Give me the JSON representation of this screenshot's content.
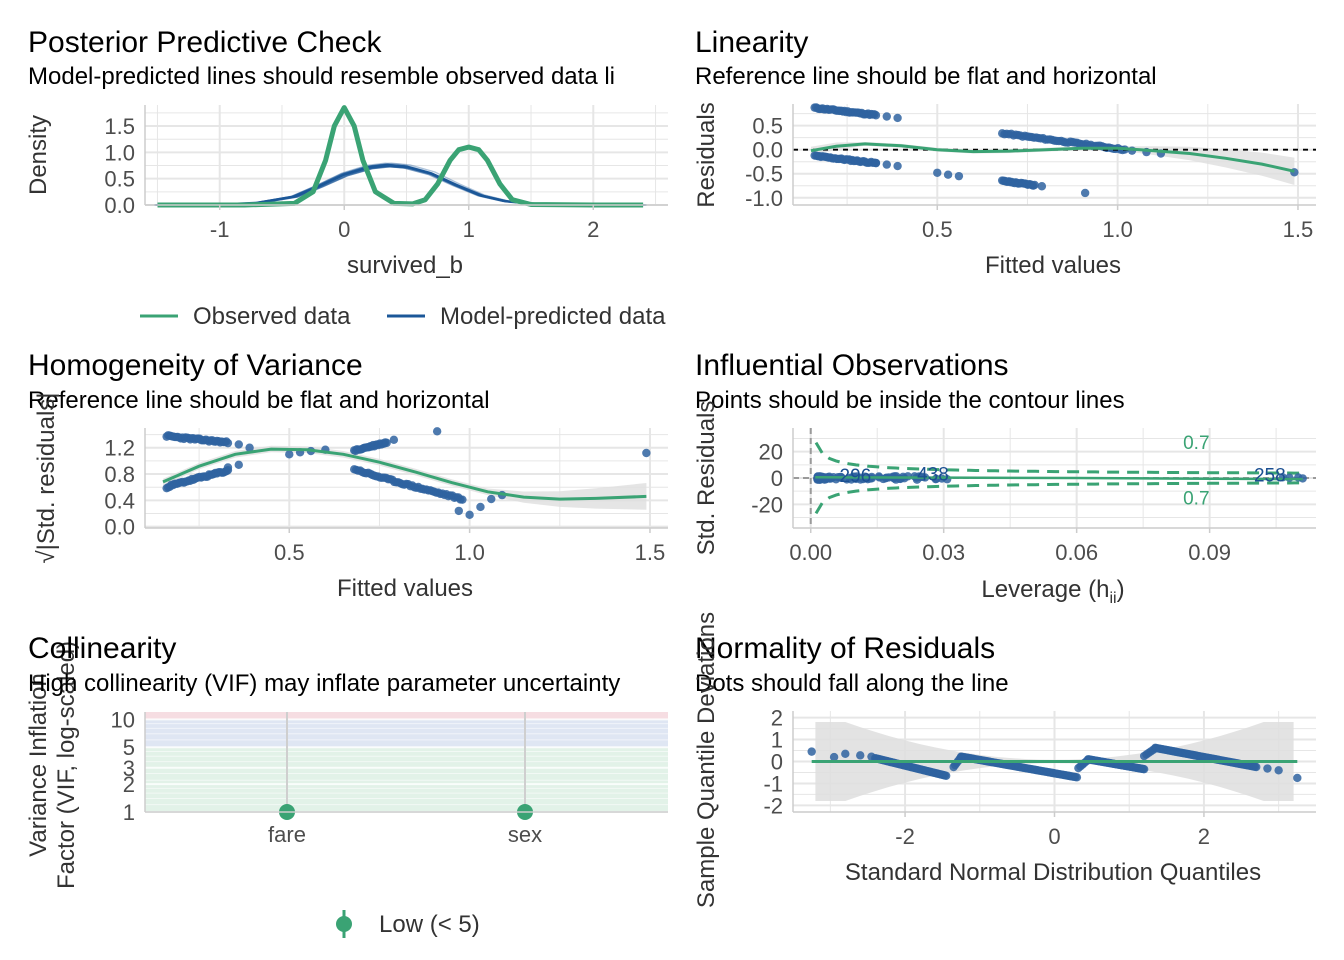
{
  "colors": {
    "observed": "#3aa374",
    "predicted": "#1b5798",
    "points": "#2f63a0",
    "smooth": "#3aa374",
    "ribbon": "#dedede",
    "grid": "#e6e6e6",
    "low_band": "#e2f2e8",
    "mod_band": "#dfe6f3",
    "high_band": "#f6dde2"
  },
  "panels": {
    "ppc": {
      "title": "Posterior Predictive Check",
      "subtitle": "Model-predicted lines should resemble observed data li",
      "xlabel": "survived_b",
      "ylabel": "Density",
      "legend": [
        "Observed data",
        "Model-predicted data"
      ]
    },
    "linearity": {
      "title": "Linearity",
      "subtitle": "Reference line should be flat and horizontal",
      "xlabel": "Fitted values",
      "ylabel": "Residuals"
    },
    "homogeneity": {
      "title": "Homogeneity of Variance",
      "subtitle": "Reference line should be flat and horizontal",
      "xlabel": "Fitted values",
      "ylabel": "√|Std. residuals|"
    },
    "influential": {
      "title": "Influential Observations",
      "subtitle": "Points should be inside the contour lines",
      "xlabel": "Leverage (h",
      "xlabel_sub": "ii",
      "xlabel_end": ")",
      "ylabel": "Std. Residuals",
      "labels": [
        "296",
        "438",
        "258"
      ],
      "contour_labels": [
        "0.7",
        "0.7"
      ]
    },
    "collinearity": {
      "title": "Collinearity",
      "subtitle": "High collinearity (VIF) may inflate parameter uncertainty",
      "ylabel1": "Variance Inflation",
      "ylabel2": "Factor (VIF, log-scaled)",
      "legend": "Low (< 5)"
    },
    "normality": {
      "title": "Normality of Residuals",
      "subtitle": "Dots should fall along the line",
      "xlabel": "Standard Normal Distribution Quantiles",
      "ylabel": "Sample Quantile Deviations"
    }
  },
  "chart_data": [
    {
      "type": "line",
      "name": "ppc",
      "xlim": [
        -1.6,
        2.6
      ],
      "ylim": [
        0,
        1.9
      ],
      "xticks": [
        -1,
        0,
        1,
        2
      ],
      "yticks": [
        0.0,
        0.5,
        1.0,
        1.5
      ],
      "series": [
        {
          "name": "Observed data",
          "x": [
            -1.5,
            -0.8,
            -0.4,
            -0.25,
            -0.15,
            -0.08,
            0,
            0.08,
            0.15,
            0.25,
            0.4,
            0.55,
            0.65,
            0.75,
            0.85,
            0.92,
            1.0,
            1.08,
            1.15,
            1.25,
            1.35,
            1.5,
            2.0,
            2.4
          ],
          "y": [
            0.0,
            0.0,
            0.03,
            0.25,
            0.85,
            1.5,
            1.85,
            1.5,
            0.85,
            0.25,
            0.03,
            0.02,
            0.1,
            0.4,
            0.85,
            1.05,
            1.1,
            1.05,
            0.85,
            0.4,
            0.1,
            0.01,
            0.0,
            0.0
          ]
        },
        {
          "name": "Model-predicted data",
          "x": [
            -1.5,
            -1.0,
            -0.7,
            -0.4,
            -0.2,
            0.0,
            0.2,
            0.35,
            0.5,
            0.7,
            0.9,
            1.1,
            1.3,
            1.6,
            2.0,
            2.4
          ],
          "y": [
            0.0,
            0.01,
            0.04,
            0.16,
            0.36,
            0.58,
            0.72,
            0.76,
            0.73,
            0.6,
            0.38,
            0.18,
            0.07,
            0.01,
            0.0,
            0.0
          ]
        }
      ]
    },
    {
      "type": "scatter",
      "name": "linearity",
      "xlim": [
        0.1,
        1.55
      ],
      "ylim": [
        -1.15,
        0.95
      ],
      "xticks": [
        0.5,
        1.0,
        1.5
      ],
      "yticks": [
        -1.0,
        -0.5,
        0.0,
        0.5
      ],
      "smooth": {
        "x": [
          0.15,
          0.22,
          0.3,
          0.4,
          0.5,
          0.6,
          0.7,
          0.8,
          0.9,
          1.0,
          1.1,
          1.2,
          1.3,
          1.4,
          1.49
        ],
        "y": [
          -0.02,
          0.07,
          0.12,
          0.08,
          0.0,
          -0.04,
          -0.03,
          0.0,
          0.03,
          0.03,
          -0.02,
          -0.08,
          -0.18,
          -0.3,
          -0.45
        ]
      }
    },
    {
      "type": "scatter",
      "name": "homogeneity",
      "xlim": [
        0.1,
        1.55
      ],
      "ylim": [
        -0.02,
        1.5
      ],
      "xticks": [
        0.5,
        1.0,
        1.5
      ],
      "yticks": [
        0.0,
        0.4,
        0.8,
        1.2
      ],
      "smooth": {
        "x": [
          0.15,
          0.25,
          0.35,
          0.45,
          0.55,
          0.65,
          0.75,
          0.85,
          0.95,
          1.05,
          1.15,
          1.25,
          1.35,
          1.49
        ],
        "y": [
          0.68,
          0.92,
          1.1,
          1.18,
          1.17,
          1.1,
          0.98,
          0.83,
          0.67,
          0.53,
          0.45,
          0.42,
          0.43,
          0.46
        ]
      }
    },
    {
      "type": "scatter",
      "name": "influential",
      "xlim": [
        -0.004,
        0.114
      ],
      "ylim": [
        -38,
        38
      ],
      "xticks": [
        0.0,
        0.03,
        0.06,
        0.09
      ],
      "xtick_labels": [
        "0.00",
        "0.03",
        "0.06",
        "0.09"
      ],
      "yticks": [
        -20,
        0,
        20
      ]
    },
    {
      "type": "scatter",
      "name": "collinearity",
      "categories": [
        "fare",
        "sex"
      ],
      "values": [
        1.0,
        1.0
      ],
      "ylim": [
        1,
        12
      ],
      "log_scale": true,
      "yticks": [
        1,
        2,
        3,
        5,
        10
      ]
    },
    {
      "type": "scatter",
      "name": "normality",
      "xlim": [
        -3.5,
        3.5
      ],
      "ylim": [
        -2.3,
        2.3
      ],
      "xticks": [
        -2,
        0,
        2
      ],
      "yticks": [
        -2,
        -1,
        0,
        1,
        2
      ]
    }
  ]
}
